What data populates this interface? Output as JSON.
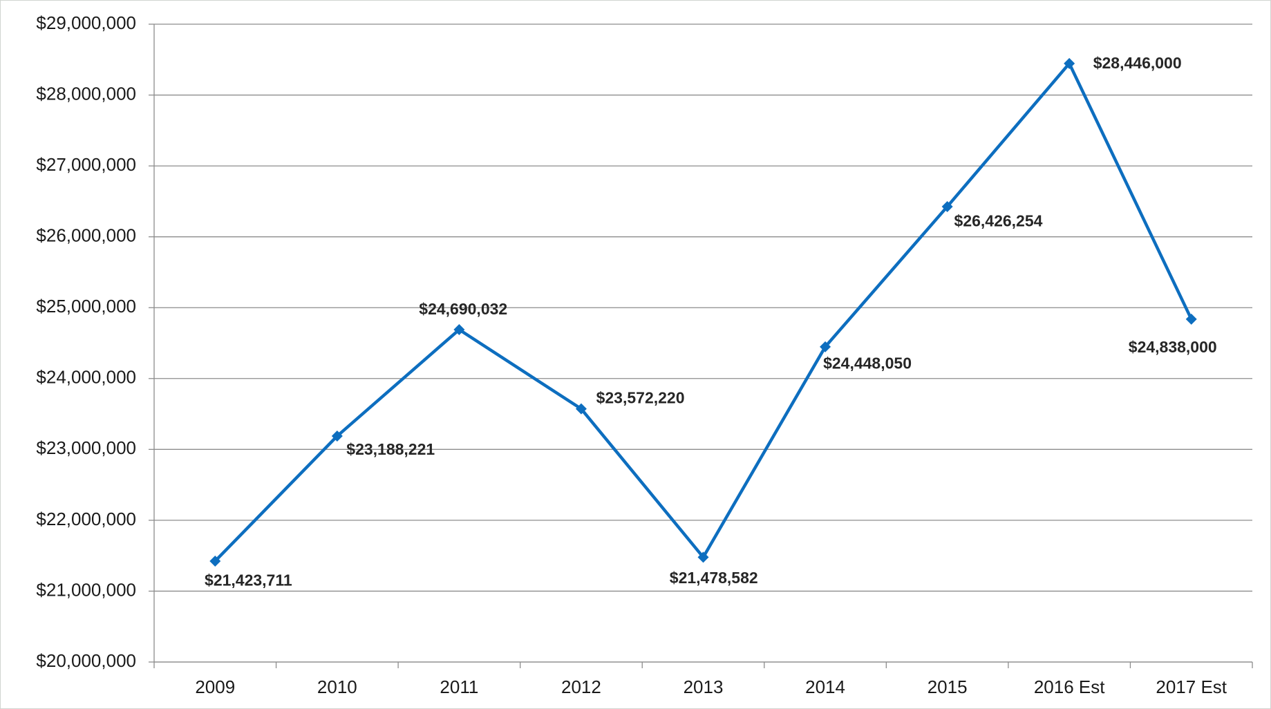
{
  "chart_data": {
    "type": "line",
    "categories": [
      "2009",
      "2010",
      "2011",
      "2012",
      "2013",
      "2014",
      "2015",
      "2016 Est",
      "2017 Est"
    ],
    "values": [
      21423711,
      23188221,
      24690032,
      23572220,
      21478582,
      24448050,
      26426254,
      28446000,
      24838000
    ],
    "value_labels": [
      "$21,423,711",
      "$23,188,221",
      "$24,690,032",
      "$23,572,220",
      "$21,478,582",
      "$24,448,050",
      "$26,426,254",
      "$28,446,000",
      "$24,838,000"
    ],
    "color": "#0d6ebf",
    "ylim": [
      20000000,
      29000000
    ],
    "yticks": [
      {
        "value": 20000000,
        "label": "$20,000,000"
      },
      {
        "value": 21000000,
        "label": "$21,000,000"
      },
      {
        "value": 22000000,
        "label": "$22,000,000"
      },
      {
        "value": 23000000,
        "label": "$23,000,000"
      },
      {
        "value": 24000000,
        "label": "$24,000,000"
      },
      {
        "value": 25000000,
        "label": "$25,000,000"
      },
      {
        "value": 26000000,
        "label": "$26,000,000"
      },
      {
        "value": 27000000,
        "label": "$27,000,000"
      },
      {
        "value": 28000000,
        "label": "$28,000,000"
      },
      {
        "value": 29000000,
        "label": "$29,000,000"
      }
    ],
    "grid": true
  }
}
